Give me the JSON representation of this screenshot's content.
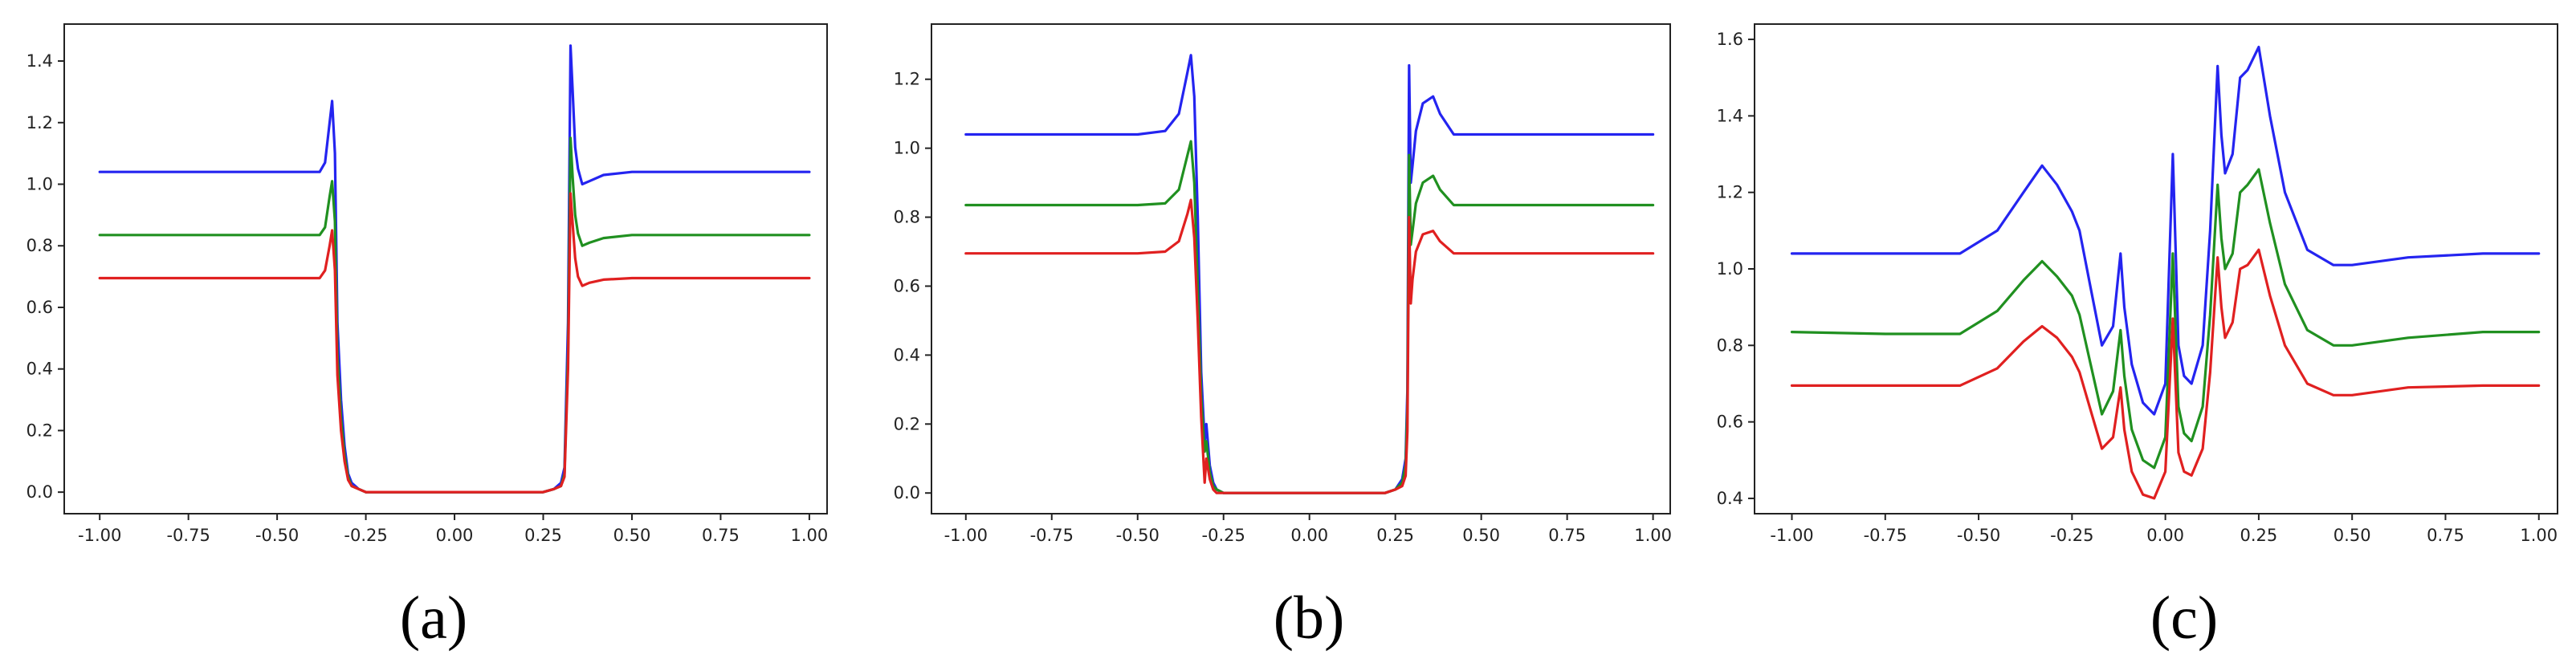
{
  "chart_data": [
    {
      "type": "line",
      "panel_label": "(a)",
      "xlim": [
        -1.1,
        1.05
      ],
      "ylim": [
        -0.07,
        1.52
      ],
      "xticks": [
        "-1.00",
        "-0.75",
        "-0.50",
        "-0.25",
        "0.00",
        "0.25",
        "0.50",
        "0.75",
        "1.00"
      ],
      "xtick_values": [
        -1.0,
        -0.75,
        -0.5,
        -0.25,
        0.0,
        0.25,
        0.5,
        0.75,
        1.0
      ],
      "yticks": [
        "0.0",
        "0.2",
        "0.4",
        "0.6",
        "0.8",
        "1.0",
        "1.2",
        "1.4"
      ],
      "ytick_values": [
        0.0,
        0.2,
        0.4,
        0.6,
        0.8,
        1.0,
        1.2,
        1.4
      ],
      "grid": false,
      "series": [
        {
          "color": "#2424f0",
          "x": [
            -1.0,
            -0.45,
            -0.38,
            -0.365,
            -0.352,
            -0.345,
            -0.337,
            -0.33,
            -0.32,
            -0.31,
            -0.3,
            -0.29,
            -0.27,
            -0.25,
            0.0,
            0.25,
            0.28,
            0.3,
            0.31,
            0.32,
            0.327,
            0.333,
            0.34,
            0.348,
            0.36,
            0.38,
            0.42,
            0.5,
            1.0
          ],
          "y": [
            1.04,
            1.04,
            1.04,
            1.07,
            1.2,
            1.27,
            1.1,
            0.55,
            0.3,
            0.15,
            0.06,
            0.03,
            0.01,
            0.0,
            0.0,
            0.0,
            0.01,
            0.03,
            0.08,
            0.55,
            1.45,
            1.3,
            1.12,
            1.05,
            1.0,
            1.01,
            1.03,
            1.04,
            1.04
          ]
        },
        {
          "color": "#209020",
          "x": [
            -1.0,
            -0.45,
            -0.38,
            -0.365,
            -0.352,
            -0.345,
            -0.337,
            -0.33,
            -0.32,
            -0.31,
            -0.3,
            -0.29,
            -0.27,
            -0.25,
            0.0,
            0.25,
            0.28,
            0.3,
            0.31,
            0.32,
            0.327,
            0.333,
            0.34,
            0.348,
            0.36,
            0.38,
            0.42,
            0.5,
            1.0
          ],
          "y": [
            0.835,
            0.835,
            0.835,
            0.86,
            0.96,
            1.01,
            0.88,
            0.45,
            0.24,
            0.12,
            0.05,
            0.02,
            0.01,
            0.0,
            0.0,
            0.0,
            0.01,
            0.02,
            0.06,
            0.45,
            1.15,
            1.02,
            0.9,
            0.84,
            0.8,
            0.81,
            0.825,
            0.835,
            0.835
          ]
        },
        {
          "color": "#e02020",
          "x": [
            -1.0,
            -0.45,
            -0.38,
            -0.365,
            -0.352,
            -0.345,
            -0.337,
            -0.33,
            -0.32,
            -0.31,
            -0.3,
            -0.29,
            -0.27,
            -0.25,
            0.0,
            0.25,
            0.28,
            0.3,
            0.31,
            0.32,
            0.327,
            0.333,
            0.34,
            0.348,
            0.36,
            0.38,
            0.42,
            0.5,
            1.0
          ],
          "y": [
            0.695,
            0.695,
            0.695,
            0.72,
            0.8,
            0.85,
            0.72,
            0.38,
            0.2,
            0.1,
            0.04,
            0.02,
            0.01,
            0.0,
            0.0,
            0.0,
            0.01,
            0.02,
            0.05,
            0.4,
            0.97,
            0.87,
            0.76,
            0.7,
            0.67,
            0.68,
            0.69,
            0.695,
            0.695
          ]
        }
      ]
    },
    {
      "type": "line",
      "panel_label": "(b)",
      "xlim": [
        -1.1,
        1.05
      ],
      "ylim": [
        -0.06,
        1.36
      ],
      "xticks": [
        "-1.00",
        "-0.75",
        "-0.50",
        "-0.25",
        "0.00",
        "0.25",
        "0.50",
        "0.75",
        "1.00"
      ],
      "xtick_values": [
        -1.0,
        -0.75,
        -0.5,
        -0.25,
        0.0,
        0.25,
        0.5,
        0.75,
        1.0
      ],
      "yticks": [
        "0.0",
        "0.2",
        "0.4",
        "0.6",
        "0.8",
        "1.0",
        "1.2"
      ],
      "ytick_values": [
        0.0,
        0.2,
        0.4,
        0.6,
        0.8,
        1.0,
        1.2
      ],
      "grid": false,
      "series": [
        {
          "color": "#2424f0",
          "x": [
            -1.0,
            -0.5,
            -0.42,
            -0.38,
            -0.355,
            -0.345,
            -0.335,
            -0.325,
            -0.315,
            -0.305,
            -0.3,
            -0.29,
            -0.28,
            -0.27,
            -0.25,
            0.0,
            0.22,
            0.25,
            0.27,
            0.28,
            0.285,
            0.29,
            0.295,
            0.3,
            0.31,
            0.33,
            0.36,
            0.38,
            0.42,
            0.5,
            1.0
          ],
          "y": [
            1.04,
            1.04,
            1.05,
            1.1,
            1.22,
            1.27,
            1.15,
            0.8,
            0.35,
            0.15,
            0.2,
            0.08,
            0.03,
            0.01,
            0.0,
            0.0,
            0.0,
            0.01,
            0.04,
            0.1,
            0.3,
            1.24,
            0.9,
            0.95,
            1.05,
            1.13,
            1.15,
            1.1,
            1.04,
            1.04,
            1.04
          ]
        },
        {
          "color": "#209020",
          "x": [
            -1.0,
            -0.5,
            -0.42,
            -0.38,
            -0.355,
            -0.345,
            -0.335,
            -0.325,
            -0.315,
            -0.305,
            -0.3,
            -0.29,
            -0.28,
            -0.27,
            -0.25,
            0.0,
            0.22,
            0.25,
            0.27,
            0.28,
            0.285,
            0.29,
            0.295,
            0.3,
            0.31,
            0.33,
            0.36,
            0.38,
            0.42,
            0.5,
            1.0
          ],
          "y": [
            0.835,
            0.835,
            0.84,
            0.88,
            0.98,
            1.02,
            0.9,
            0.6,
            0.28,
            0.12,
            0.15,
            0.06,
            0.02,
            0.01,
            0.0,
            0.0,
            0.0,
            0.01,
            0.03,
            0.08,
            0.25,
            0.98,
            0.72,
            0.76,
            0.84,
            0.9,
            0.92,
            0.88,
            0.835,
            0.835,
            0.835
          ]
        },
        {
          "color": "#e02020",
          "x": [
            -1.0,
            -0.5,
            -0.42,
            -0.38,
            -0.355,
            -0.345,
            -0.335,
            -0.325,
            -0.315,
            -0.305,
            -0.3,
            -0.29,
            -0.28,
            -0.27,
            -0.25,
            0.0,
            0.22,
            0.25,
            0.27,
            0.28,
            0.285,
            0.29,
            0.295,
            0.3,
            0.31,
            0.33,
            0.36,
            0.38,
            0.42,
            0.5,
            1.0
          ],
          "y": [
            0.695,
            0.695,
            0.7,
            0.73,
            0.81,
            0.85,
            0.74,
            0.5,
            0.22,
            0.03,
            0.1,
            0.04,
            0.01,
            0.0,
            0.0,
            0.0,
            0.0,
            0.01,
            0.02,
            0.05,
            0.18,
            0.8,
            0.55,
            0.62,
            0.7,
            0.75,
            0.76,
            0.73,
            0.695,
            0.695,
            0.695
          ]
        }
      ]
    },
    {
      "type": "line",
      "panel_label": "(c)",
      "xlim": [
        -1.1,
        1.05
      ],
      "ylim": [
        0.36,
        1.64
      ],
      "xticks": [
        "-1.00",
        "-0.75",
        "-0.50",
        "-0.25",
        "0.00",
        "0.25",
        "0.50",
        "0.75",
        "1.00"
      ],
      "xtick_values": [
        -1.0,
        -0.75,
        -0.5,
        -0.25,
        0.0,
        0.25,
        0.5,
        0.75,
        1.0
      ],
      "yticks": [
        "0.4",
        "0.6",
        "0.8",
        "1.0",
        "1.2",
        "1.4",
        "1.6"
      ],
      "ytick_values": [
        0.4,
        0.6,
        0.8,
        1.0,
        1.2,
        1.4,
        1.6
      ],
      "grid": false,
      "series": [
        {
          "color": "#2424f0",
          "x": [
            -1.0,
            -0.75,
            -0.55,
            -0.45,
            -0.38,
            -0.33,
            -0.29,
            -0.25,
            -0.23,
            -0.2,
            -0.17,
            -0.14,
            -0.12,
            -0.11,
            -0.09,
            -0.06,
            -0.03,
            0.0,
            0.02,
            0.035,
            0.05,
            0.07,
            0.1,
            0.12,
            0.14,
            0.15,
            0.16,
            0.18,
            0.2,
            0.22,
            0.25,
            0.28,
            0.32,
            0.38,
            0.45,
            0.5,
            0.65,
            0.85,
            1.0
          ],
          "y": [
            1.04,
            1.04,
            1.04,
            1.1,
            1.2,
            1.27,
            1.22,
            1.15,
            1.1,
            0.95,
            0.8,
            0.85,
            1.04,
            0.9,
            0.75,
            0.65,
            0.62,
            0.7,
            1.3,
            0.8,
            0.72,
            0.7,
            0.8,
            1.1,
            1.53,
            1.35,
            1.25,
            1.3,
            1.5,
            1.52,
            1.58,
            1.4,
            1.2,
            1.05,
            1.01,
            1.01,
            1.03,
            1.04,
            1.04
          ]
        },
        {
          "color": "#209020",
          "x": [
            -1.0,
            -0.75,
            -0.55,
            -0.45,
            -0.38,
            -0.33,
            -0.29,
            -0.25,
            -0.23,
            -0.2,
            -0.17,
            -0.14,
            -0.12,
            -0.11,
            -0.09,
            -0.06,
            -0.03,
            0.0,
            0.02,
            0.035,
            0.05,
            0.07,
            0.1,
            0.12,
            0.14,
            0.15,
            0.16,
            0.18,
            0.2,
            0.22,
            0.25,
            0.28,
            0.32,
            0.38,
            0.45,
            0.5,
            0.65,
            0.85,
            1.0
          ],
          "y": [
            0.835,
            0.83,
            0.83,
            0.89,
            0.97,
            1.02,
            0.98,
            0.93,
            0.88,
            0.75,
            0.62,
            0.68,
            0.84,
            0.72,
            0.58,
            0.5,
            0.48,
            0.56,
            1.04,
            0.64,
            0.57,
            0.55,
            0.64,
            0.88,
            1.22,
            1.08,
            1.0,
            1.04,
            1.2,
            1.22,
            1.26,
            1.12,
            0.96,
            0.84,
            0.8,
            0.8,
            0.82,
            0.835,
            0.835
          ]
        },
        {
          "color": "#e02020",
          "x": [
            -1.0,
            -0.75,
            -0.55,
            -0.45,
            -0.38,
            -0.33,
            -0.29,
            -0.25,
            -0.23,
            -0.2,
            -0.17,
            -0.14,
            -0.12,
            -0.11,
            -0.09,
            -0.06,
            -0.03,
            0.0,
            0.02,
            0.035,
            0.05,
            0.07,
            0.1,
            0.12,
            0.14,
            0.15,
            0.16,
            0.18,
            0.2,
            0.22,
            0.25,
            0.28,
            0.32,
            0.38,
            0.45,
            0.5,
            0.65,
            0.85,
            1.0
          ],
          "y": [
            0.695,
            0.695,
            0.695,
            0.74,
            0.81,
            0.85,
            0.82,
            0.77,
            0.73,
            0.63,
            0.53,
            0.56,
            0.69,
            0.58,
            0.47,
            0.41,
            0.4,
            0.47,
            0.87,
            0.52,
            0.47,
            0.46,
            0.53,
            0.73,
            1.03,
            0.9,
            0.82,
            0.86,
            1.0,
            1.01,
            1.05,
            0.93,
            0.8,
            0.7,
            0.67,
            0.67,
            0.69,
            0.695,
            0.695
          ]
        }
      ]
    }
  ]
}
